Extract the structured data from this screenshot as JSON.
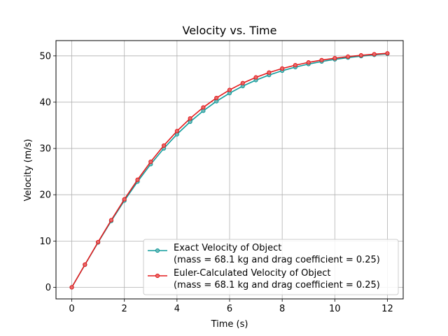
{
  "chart_data": {
    "type": "line",
    "title": "Velocity vs. Time",
    "xlabel": "Time (s)",
    "ylabel": "Velocity (m/s)",
    "xlim": [
      -0.6,
      12.6
    ],
    "ylim": [
      -2.5,
      53.3
    ],
    "xticks": [
      0,
      2,
      4,
      6,
      8,
      10,
      12
    ],
    "yticks": [
      0,
      10,
      20,
      30,
      40,
      50
    ],
    "grid": true,
    "legend_position": "lower-right",
    "x": [
      0,
      0.5,
      1,
      1.5,
      2,
      2.5,
      3,
      3.5,
      4,
      4.5,
      5,
      5.5,
      6,
      6.5,
      7,
      7.5,
      8,
      8.5,
      9,
      9.5,
      10,
      10.5,
      11,
      11.5,
      12
    ],
    "series": [
      {
        "name": "Exact Velocity of Object",
        "name_line2": "(mass = 68.1 kg and drag coefficient = 0.25)",
        "color": "#0f9b9b",
        "marker_fill": "#6fb8b8",
        "values": [
          0,
          4.88,
          9.69,
          14.33,
          18.73,
          22.83,
          26.6,
          30.01,
          33.06,
          35.76,
          38.13,
          40.19,
          41.95,
          43.47,
          44.76,
          45.86,
          46.79,
          47.57,
          48.23,
          48.78,
          49.24,
          49.62,
          49.95,
          50.22,
          50.44
        ]
      },
      {
        "name": "Euler-Calculated Velocity of Object",
        "name_line2": "(mass = 68.1 kg and drag coefficient = 0.25)",
        "color": "#e31a1c",
        "marker_fill": "#e86a6a",
        "values": [
          0,
          4.91,
          9.78,
          14.51,
          19.02,
          23.24,
          27.12,
          30.63,
          33.75,
          36.49,
          38.87,
          40.91,
          42.65,
          44.12,
          45.36,
          46.4,
          47.27,
          47.99,
          48.59,
          49.09,
          49.5,
          49.84,
          50.12,
          50.36,
          50.55
        ]
      }
    ]
  }
}
